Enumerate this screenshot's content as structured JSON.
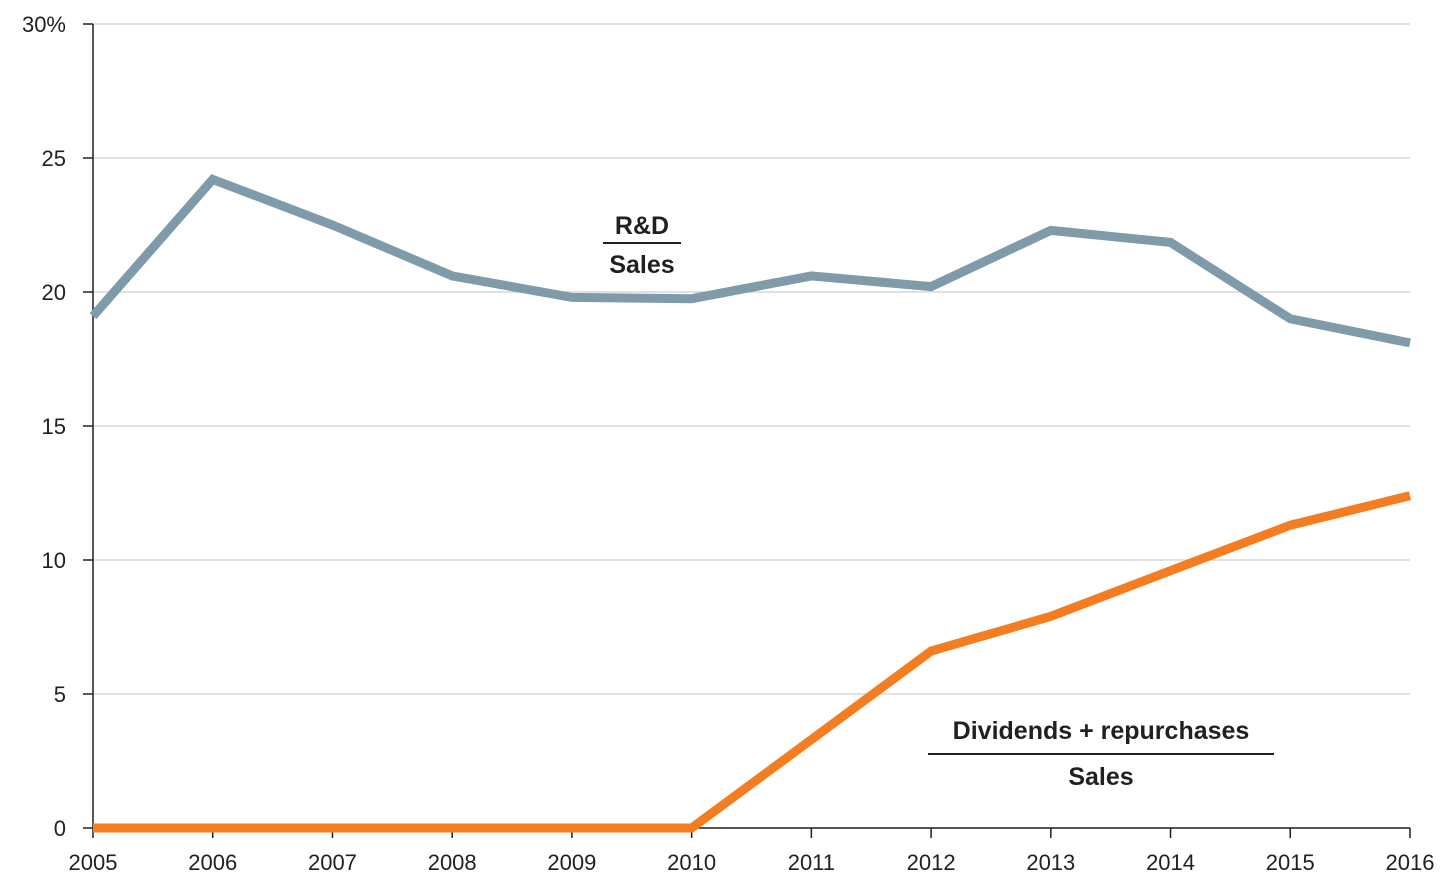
{
  "chart_data": {
    "type": "line",
    "x": [
      2005,
      2006,
      2007,
      2008,
      2009,
      2010,
      2011,
      2012,
      2013,
      2014,
      2015,
      2016
    ],
    "xticks": [
      "2005",
      "2006",
      "2007",
      "2008",
      "2009",
      "2010",
      "2011",
      "2012",
      "2013",
      "2014",
      "2015",
      "2016"
    ],
    "yticks": [
      "0",
      "5",
      "10",
      "15",
      "20",
      "25",
      "30%"
    ],
    "ylim": [
      0,
      30
    ],
    "grid": true,
    "series": [
      {
        "name_numerator": "R&D",
        "name_denominator": "Sales",
        "color": "#7f9baa",
        "values": [
          19.1,
          24.2,
          22.5,
          20.6,
          19.8,
          19.75,
          20.6,
          20.2,
          22.3,
          21.85,
          19.0,
          18.1
        ]
      },
      {
        "name_numerator": "Dividends + repurchases",
        "name_denominator": "Sales",
        "color": "#f37d20",
        "values": [
          0,
          0,
          0,
          0,
          0,
          0,
          3.3,
          6.6,
          7.9,
          9.6,
          11.3,
          12.4
        ]
      }
    ]
  }
}
